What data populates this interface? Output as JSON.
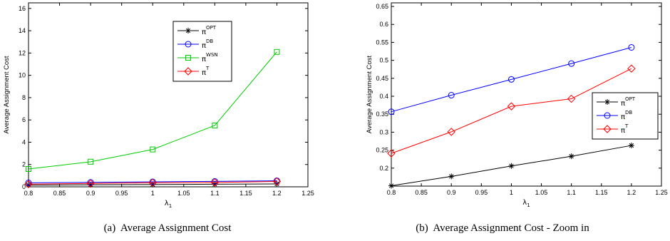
{
  "figure": {
    "captions": [
      "(a)  Average Assignment Cost",
      "(b)  Average Assignment Cost - Zoom in"
    ]
  },
  "chart_data": [
    {
      "type": "line",
      "title": "",
      "xlabel": "λ",
      "xlabel_subscript": "1",
      "ylabel": "Average Assignment Cost",
      "xlim": [
        0.8,
        1.25
      ],
      "ylim": [
        0,
        16.5
      ],
      "xticks": [
        "0.8",
        "0.85",
        "0.9",
        "0.95",
        "1",
        "1.05",
        "1.1",
        "1.15",
        "1.2",
        "1.25"
      ],
      "yticks": [
        "0",
        "2",
        "4",
        "6",
        "8",
        "10",
        "12",
        "14",
        "16"
      ],
      "x": [
        0.8,
        0.9,
        1.0,
        1.1,
        1.2
      ],
      "legend_position": "top-right",
      "series": [
        {
          "name": "π",
          "superscript": "OPT",
          "color": "#000000",
          "marker": "star",
          "values": [
            0.15,
            0.18,
            0.21,
            0.23,
            0.26
          ]
        },
        {
          "name": "π",
          "superscript": "DB",
          "color": "#0000ff",
          "marker": "circle",
          "values": [
            0.36,
            0.4,
            0.45,
            0.49,
            0.54
          ]
        },
        {
          "name": "π",
          "superscript": "WSN",
          "color": "#00cc00",
          "marker": "square",
          "values": [
            1.6,
            2.25,
            3.35,
            5.5,
            12.1
          ]
        },
        {
          "name": "π",
          "superscript": "T",
          "color": "#ff0000",
          "marker": "diamond",
          "values": [
            0.24,
            0.3,
            0.37,
            0.39,
            0.48
          ]
        }
      ]
    },
    {
      "type": "line",
      "title": "",
      "xlabel": "λ",
      "xlabel_subscript": "1",
      "ylabel": "Average Assignment Cost",
      "xlim": [
        0.8,
        1.25
      ],
      "ylim": [
        0.15,
        0.66
      ],
      "xticks": [
        "0.8",
        "0.85",
        "0.9",
        "0.95",
        "1",
        "1.05",
        "1.1",
        "1.15",
        "1.2",
        "1.25"
      ],
      "yticks": [
        "0.2",
        "0.25",
        "0.3",
        "0.35",
        "0.4",
        "0.45",
        "0.5",
        "0.55",
        "0.6",
        "0.65"
      ],
      "x": [
        0.8,
        0.9,
        1.0,
        1.1,
        1.2
      ],
      "legend_position": "right",
      "series": [
        {
          "name": "π",
          "superscript": "OPT",
          "color": "#000000",
          "marker": "star",
          "values": [
            0.151,
            0.177,
            0.206,
            0.233,
            0.263
          ]
        },
        {
          "name": "π",
          "superscript": "DB",
          "color": "#0000ff",
          "marker": "circle",
          "values": [
            0.357,
            0.403,
            0.447,
            0.491,
            0.536
          ]
        },
        {
          "name": "π",
          "superscript": "T",
          "color": "#ff0000",
          "marker": "diamond",
          "values": [
            0.241,
            0.301,
            0.372,
            0.393,
            0.477
          ]
        }
      ]
    }
  ]
}
